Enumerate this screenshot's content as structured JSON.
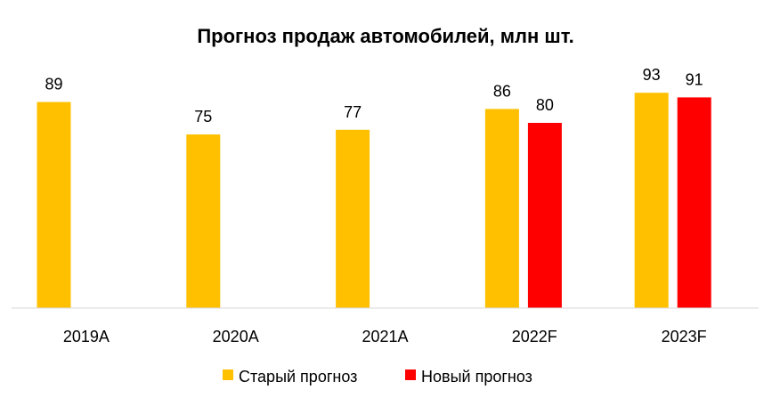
{
  "chart_data": {
    "type": "bar",
    "title": "Прогноз продаж автомобилей, млн шт.",
    "categories": [
      "2019A",
      "2020A",
      "2021A",
      "2022F",
      "2023F"
    ],
    "series": [
      {
        "name": "Старый прогноз",
        "color": "#FFC000",
        "values": [
          89,
          75,
          77,
          86,
          93
        ]
      },
      {
        "name": "Новый прогноз",
        "color": "#FF0000",
        "values": [
          null,
          null,
          null,
          80,
          91
        ]
      }
    ],
    "xlabel": "",
    "ylabel": "",
    "ylim": [
      0,
      100
    ],
    "grid": false,
    "legend": "bottom"
  }
}
